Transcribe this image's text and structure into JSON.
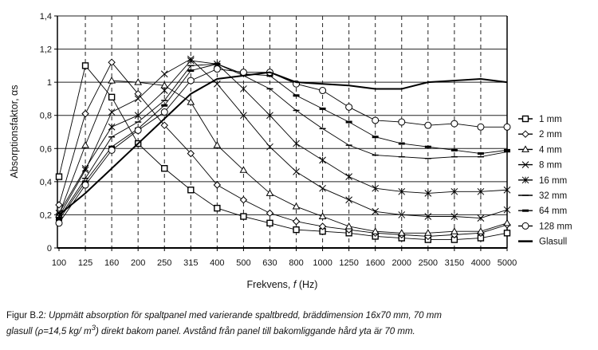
{
  "chart_data": {
    "type": "line",
    "title": "",
    "xlabel": "Frekvens, f (Hz)",
    "xlabel_parts": {
      "prefix": "Frekvens, ",
      "var": "f",
      "suffix": " (Hz)"
    },
    "ylabel": "Absorptionsfaktor, αs",
    "ylim": [
      0,
      1.4
    ],
    "yticks": [
      "0",
      "0,2",
      "0,4",
      "0,6",
      "0,8",
      "1",
      "1,2",
      "1,4"
    ],
    "categories": [
      "100",
      "125",
      "160",
      "200",
      "250",
      "315",
      "400",
      "500",
      "630",
      "800",
      "1000",
      "1250",
      "1600",
      "2000",
      "2500",
      "3150",
      "4000",
      "5000"
    ],
    "grid": "horizontal solid, vertical dashed",
    "legend_position": "right",
    "series": [
      {
        "name": "1 mm",
        "marker": "square",
        "values": [
          0.43,
          1.1,
          0.91,
          0.63,
          0.48,
          0.35,
          0.24,
          0.19,
          0.15,
          0.11,
          0.1,
          0.09,
          0.07,
          0.06,
          0.05,
          0.05,
          0.06,
          0.09
        ]
      },
      {
        "name": "2 mm",
        "marker": "diamond",
        "values": [
          0.26,
          0.81,
          1.12,
          0.93,
          0.74,
          0.57,
          0.38,
          0.29,
          0.21,
          0.16,
          0.13,
          0.11,
          0.09,
          0.08,
          0.07,
          0.08,
          0.09,
          0.14
        ]
      },
      {
        "name": "4 mm",
        "marker": "triangle",
        "values": [
          0.2,
          0.62,
          1.01,
          1.0,
          0.98,
          0.88,
          0.62,
          0.47,
          0.33,
          0.25,
          0.19,
          0.13,
          0.1,
          0.09,
          0.09,
          0.1,
          0.1,
          0.15
        ]
      },
      {
        "name": "8 mm",
        "marker": "x",
        "values": [
          0.19,
          0.47,
          0.82,
          0.9,
          1.05,
          1.14,
          0.99,
          0.8,
          0.61,
          0.46,
          0.36,
          0.29,
          0.22,
          0.2,
          0.19,
          0.19,
          0.18,
          0.23
        ]
      },
      {
        "name": "16 mm",
        "marker": "asterisk",
        "values": [
          0.21,
          0.48,
          0.73,
          0.8,
          0.95,
          1.13,
          1.11,
          0.96,
          0.8,
          0.63,
          0.53,
          0.43,
          0.36,
          0.34,
          0.33,
          0.34,
          0.34,
          0.35
        ]
      },
      {
        "name": "32 mm",
        "marker": "dash",
        "values": [
          0.18,
          0.42,
          0.67,
          0.76,
          0.89,
          1.1,
          1.11,
          1.04,
          0.96,
          0.83,
          0.72,
          0.62,
          0.56,
          0.55,
          0.54,
          0.55,
          0.55,
          0.58
        ]
      },
      {
        "name": "64 mm",
        "marker": "thick-dash",
        "values": [
          0.17,
          0.4,
          0.61,
          0.72,
          0.86,
          1.07,
          1.11,
          1.05,
          1.04,
          0.92,
          0.84,
          0.76,
          0.67,
          0.63,
          0.61,
          0.59,
          0.57,
          0.59
        ]
      },
      {
        "name": "128 mm",
        "marker": "circle",
        "values": [
          0.15,
          0.38,
          0.59,
          0.71,
          0.82,
          1.01,
          1.08,
          1.06,
          1.06,
          0.99,
          0.95,
          0.85,
          0.77,
          0.76,
          0.74,
          0.75,
          0.73,
          0.73
        ]
      },
      {
        "name": "Glasull",
        "marker": "none",
        "values": [
          0.2,
          0.33,
          0.48,
          0.63,
          0.78,
          0.93,
          1.02,
          1.04,
          1.06,
          1.0,
          0.99,
          0.98,
          0.96,
          0.96,
          1.0,
          1.01,
          1.02,
          1.0
        ]
      }
    ]
  },
  "caption": {
    "label": "Figur B.2",
    "text1": ": Uppmätt absorption för spaltpanel med varierande spaltbredd, bräddimension 16x70 mm, 70 mm",
    "text2a": "glasull (ρ=14,5 kg/ m",
    "sup": "3",
    "text2b": ") direkt bakom panel. Avstånd från panel till bakomliggande hård yta är 70 mm."
  }
}
